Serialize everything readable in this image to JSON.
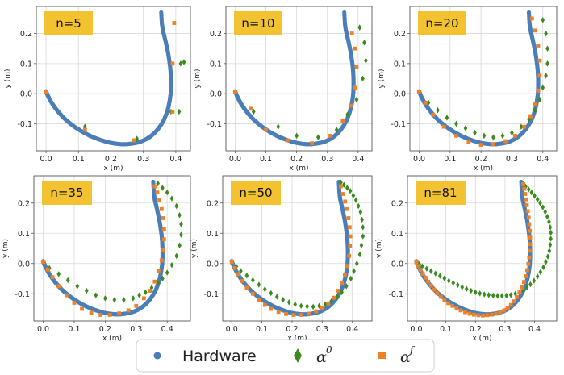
{
  "chart_data": [
    {
      "type": "scatter",
      "badge": "n=5",
      "xlabel": "x (m)",
      "ylabel": "y (m)",
      "xlim": [
        -0.03,
        0.445
      ],
      "ylim": [
        -0.19,
        0.29
      ],
      "xticks": [
        "0.0",
        "0.1",
        "0.2",
        "0.3",
        "0.4"
      ],
      "xtick_values": [
        0.0,
        0.1,
        0.2,
        0.3,
        0.4
      ],
      "yticks": [
        "-0.1",
        "0.0",
        "0.1",
        "0.2"
      ],
      "ytick_values": [
        -0.1,
        0.0,
        0.1,
        0.2
      ],
      "grid": true,
      "series": [
        {
          "name": "alpha0",
          "x": [
            0.0,
            0.12,
            0.28,
            0.385,
            0.41,
            0.415,
            0.425
          ],
          "y": [
            0.005,
            -0.11,
            -0.15,
            -0.06,
            -0.06,
            0.1,
            0.105
          ]
        },
        {
          "name": "alphaf",
          "x": [
            0.0,
            0.12,
            0.27,
            0.39,
            0.39,
            0.395
          ],
          "y": [
            0.005,
            -0.12,
            -0.155,
            -0.06,
            0.1,
            0.235
          ]
        }
      ]
    },
    {
      "type": "scatter",
      "badge": "n=10",
      "xlabel": "x (m)",
      "ylabel": "y (m)",
      "xlim": [
        -0.03,
        0.445
      ],
      "ylim": [
        -0.19,
        0.29
      ],
      "xticks": [
        "0.0",
        "0.1",
        "0.2",
        "0.3",
        "0.4"
      ],
      "xtick_values": [
        0.0,
        0.1,
        0.2,
        0.3,
        0.4
      ],
      "yticks": [
        "-0.1",
        "0.0",
        "0.1",
        "0.2"
      ],
      "ytick_values": [
        -0.1,
        0.0,
        0.1,
        0.2
      ],
      "grid": true,
      "series": [
        {
          "name": "alpha0",
          "x": [
            0.0,
            0.06,
            0.14,
            0.2,
            0.27,
            0.33,
            0.365,
            0.395,
            0.415,
            0.425,
            0.42,
            0.405
          ],
          "y": [
            0.005,
            -0.06,
            -0.11,
            -0.14,
            -0.145,
            -0.12,
            -0.07,
            -0.02,
            0.05,
            0.11,
            0.17,
            0.22
          ]
        },
        {
          "name": "alphaf",
          "x": [
            0.0,
            0.05,
            0.1,
            0.17,
            0.25,
            0.31,
            0.35,
            0.375,
            0.39,
            0.395,
            0.39,
            0.38
          ],
          "y": [
            0.005,
            -0.05,
            -0.12,
            -0.155,
            -0.165,
            -0.14,
            -0.09,
            -0.04,
            0.02,
            0.09,
            0.15,
            0.2
          ]
        }
      ]
    },
    {
      "type": "scatter",
      "badge": "n=20",
      "xlabel": "x (m)",
      "ylabel": "y (m)",
      "xlim": [
        -0.03,
        0.445
      ],
      "ylim": [
        -0.19,
        0.29
      ],
      "xticks": [
        "0.0",
        "0.1",
        "0.2",
        "0.3",
        "0.4"
      ],
      "xtick_values": [
        0.0,
        0.1,
        0.2,
        0.3,
        0.4
      ],
      "yticks": [
        "-0.1",
        "0.0",
        "0.1",
        "0.2"
      ],
      "ytick_values": [
        -0.1,
        0.0,
        0.1,
        0.2
      ],
      "grid": true,
      "series": [
        {
          "name": "alpha0",
          "x": [
            0.0,
            0.03,
            0.06,
            0.09,
            0.12,
            0.15,
            0.18,
            0.21,
            0.24,
            0.27,
            0.3,
            0.33,
            0.355,
            0.375,
            0.39,
            0.4,
            0.41,
            0.415,
            0.415,
            0.41,
            0.4
          ],
          "y": [
            0.005,
            -0.03,
            -0.055,
            -0.08,
            -0.1,
            -0.115,
            -0.13,
            -0.14,
            -0.145,
            -0.14,
            -0.13,
            -0.11,
            -0.085,
            -0.055,
            -0.02,
            0.02,
            0.06,
            0.1,
            0.15,
            0.2,
            0.245
          ]
        },
        {
          "name": "alphaf",
          "x": [
            0.0,
            0.02,
            0.045,
            0.08,
            0.12,
            0.16,
            0.2,
            0.24,
            0.28,
            0.31,
            0.34,
            0.36,
            0.375,
            0.385,
            0.39,
            0.39,
            0.385,
            0.375,
            0.365
          ],
          "y": [
            0.005,
            -0.03,
            -0.07,
            -0.11,
            -0.14,
            -0.16,
            -0.17,
            -0.168,
            -0.158,
            -0.14,
            -0.11,
            -0.075,
            -0.035,
            0.01,
            0.06,
            0.11,
            0.16,
            0.21,
            0.25
          ]
        }
      ]
    },
    {
      "type": "scatter",
      "badge": "n=35",
      "xlabel": "x (m)",
      "ylabel": "y (m)",
      "xlim": [
        -0.03,
        0.475
      ],
      "ylim": [
        -0.19,
        0.29
      ],
      "xticks": [
        "0.0",
        "0.1",
        "0.2",
        "0.3",
        "0.4"
      ],
      "xtick_values": [
        0.0,
        0.1,
        0.2,
        0.3,
        0.4
      ],
      "yticks": [
        "-0.1",
        "0.0",
        "0.1",
        "0.2"
      ],
      "ytick_values": [
        -0.1,
        0.0,
        0.1,
        0.2
      ],
      "grid": true,
      "series": [
        {
          "name": "alpha0",
          "x": [
            0.0,
            0.02,
            0.05,
            0.08,
            0.11,
            0.14,
            0.17,
            0.2,
            0.23,
            0.26,
            0.29,
            0.31,
            0.33,
            0.35,
            0.37,
            0.385,
            0.4,
            0.415,
            0.43,
            0.44,
            0.445,
            0.445,
            0.44,
            0.43,
            0.415,
            0.4,
            0.385,
            0.37
          ],
          "y": [
            0.005,
            -0.015,
            -0.035,
            -0.055,
            -0.075,
            -0.09,
            -0.105,
            -0.115,
            -0.12,
            -0.12,
            -0.115,
            -0.105,
            -0.095,
            -0.08,
            -0.065,
            -0.05,
            -0.03,
            -0.005,
            0.025,
            0.06,
            0.095,
            0.13,
            0.16,
            0.19,
            0.215,
            0.235,
            0.25,
            0.265
          ]
        },
        {
          "name": "alphaf",
          "x": [
            0.0,
            0.015,
            0.03,
            0.05,
            0.075,
            0.1,
            0.125,
            0.155,
            0.185,
            0.215,
            0.245,
            0.275,
            0.3,
            0.325,
            0.345,
            0.36,
            0.372,
            0.382,
            0.388,
            0.39,
            0.39,
            0.387,
            0.382,
            0.375,
            0.368,
            0.36
          ],
          "y": [
            0.005,
            -0.02,
            -0.045,
            -0.075,
            -0.105,
            -0.13,
            -0.15,
            -0.163,
            -0.17,
            -0.17,
            -0.165,
            -0.155,
            -0.14,
            -0.115,
            -0.09,
            -0.06,
            -0.025,
            0.01,
            0.045,
            0.08,
            0.115,
            0.15,
            0.18,
            0.21,
            0.235,
            0.255
          ]
        }
      ]
    },
    {
      "type": "scatter",
      "badge": "n=50",
      "xlabel": "x (m)",
      "ylabel": "y (m)",
      "xlim": [
        -0.03,
        0.465
      ],
      "ylim": [
        -0.19,
        0.29
      ],
      "xticks": [
        "0.0",
        "0.1",
        "0.2",
        "0.3",
        "0.4"
      ],
      "xtick_values": [
        0.0,
        0.1,
        0.2,
        0.3,
        0.4
      ],
      "yticks": [
        "-0.1",
        "0.0",
        "0.1",
        "0.2"
      ],
      "ytick_values": [
        -0.1,
        0.0,
        0.1,
        0.2
      ],
      "grid": true,
      "series": [
        {
          "name": "alpha0",
          "x": [
            0.0,
            0.015,
            0.03,
            0.05,
            0.07,
            0.09,
            0.11,
            0.13,
            0.15,
            0.17,
            0.19,
            0.21,
            0.23,
            0.25,
            0.27,
            0.29,
            0.31,
            0.33,
            0.35,
            0.365,
            0.38,
            0.395,
            0.405,
            0.415,
            0.425,
            0.43,
            0.435,
            0.435,
            0.432,
            0.427,
            0.42,
            0.412,
            0.403,
            0.393,
            0.383,
            0.372,
            0.362
          ],
          "y": [
            0.005,
            -0.01,
            -0.025,
            -0.04,
            -0.055,
            -0.07,
            -0.085,
            -0.098,
            -0.11,
            -0.12,
            -0.128,
            -0.135,
            -0.14,
            -0.142,
            -0.143,
            -0.14,
            -0.135,
            -0.125,
            -0.11,
            -0.095,
            -0.075,
            -0.05,
            -0.025,
            0.0,
            0.03,
            0.06,
            0.09,
            0.12,
            0.145,
            0.17,
            0.19,
            0.21,
            0.225,
            0.24,
            0.25,
            0.26,
            0.268
          ]
        },
        {
          "name": "alphaf",
          "x": [
            0.0,
            0.01,
            0.02,
            0.035,
            0.05,
            0.07,
            0.09,
            0.11,
            0.13,
            0.155,
            0.18,
            0.205,
            0.23,
            0.255,
            0.28,
            0.3,
            0.32,
            0.338,
            0.352,
            0.365,
            0.375,
            0.383,
            0.389,
            0.392,
            0.393,
            0.391,
            0.387,
            0.382,
            0.376,
            0.369,
            0.362
          ],
          "y": [
            0.005,
            -0.015,
            -0.035,
            -0.058,
            -0.08,
            -0.1,
            -0.12,
            -0.137,
            -0.15,
            -0.16,
            -0.167,
            -0.17,
            -0.17,
            -0.166,
            -0.158,
            -0.147,
            -0.132,
            -0.113,
            -0.09,
            -0.065,
            -0.037,
            -0.008,
            0.025,
            0.058,
            0.09,
            0.12,
            0.15,
            0.18,
            0.205,
            0.23,
            0.255
          ]
        }
      ]
    },
    {
      "type": "scatter",
      "badge": "n=81",
      "xlabel": "x (m)",
      "ylabel": "y (m)",
      "xlim": [
        -0.03,
        0.475
      ],
      "ylim": [
        -0.19,
        0.29
      ],
      "xticks": [
        "0.0",
        "0.1",
        "0.2",
        "0.3",
        "0.4"
      ],
      "xtick_values": [
        0.0,
        0.1,
        0.2,
        0.3,
        0.4
      ],
      "yticks": [
        "-0.1",
        "0.0",
        "0.1",
        "0.2"
      ],
      "ytick_values": [
        -0.1,
        0.0,
        0.1,
        0.2
      ],
      "grid": true,
      "series": [
        {
          "name": "alpha0",
          "x": [
            0.0,
            0.01,
            0.02,
            0.035,
            0.05,
            0.065,
            0.08,
            0.095,
            0.11,
            0.125,
            0.14,
            0.155,
            0.17,
            0.185,
            0.2,
            0.215,
            0.23,
            0.245,
            0.26,
            0.275,
            0.29,
            0.305,
            0.32,
            0.335,
            0.35,
            0.362,
            0.374,
            0.386,
            0.398,
            0.41,
            0.42,
            0.43,
            0.438,
            0.445,
            0.45,
            0.453,
            0.455,
            0.455,
            0.453,
            0.449,
            0.443,
            0.436,
            0.428,
            0.419,
            0.41,
            0.4,
            0.39,
            0.38,
            0.37,
            0.362
          ],
          "y": [
            0.005,
            -0.002,
            -0.009,
            -0.017,
            -0.025,
            -0.033,
            -0.041,
            -0.049,
            -0.057,
            -0.064,
            -0.071,
            -0.078,
            -0.084,
            -0.09,
            -0.095,
            -0.099,
            -0.102,
            -0.104,
            -0.106,
            -0.107,
            -0.107,
            -0.106,
            -0.104,
            -0.1,
            -0.095,
            -0.088,
            -0.079,
            -0.069,
            -0.057,
            -0.043,
            -0.028,
            -0.012,
            0.005,
            0.023,
            0.042,
            0.062,
            0.082,
            0.102,
            0.12,
            0.138,
            0.155,
            0.171,
            0.186,
            0.2,
            0.212,
            0.224,
            0.235,
            0.245,
            0.254,
            0.262
          ]
        },
        {
          "name": "alphaf",
          "x": [
            0.0,
            0.007,
            0.014,
            0.022,
            0.031,
            0.04,
            0.05,
            0.06,
            0.071,
            0.083,
            0.095,
            0.108,
            0.122,
            0.136,
            0.15,
            0.165,
            0.18,
            0.195,
            0.21,
            0.225,
            0.24,
            0.255,
            0.27,
            0.284,
            0.297,
            0.309,
            0.32,
            0.33,
            0.34,
            0.349,
            0.357,
            0.364,
            0.37,
            0.375,
            0.379,
            0.382,
            0.384,
            0.385,
            0.385,
            0.384,
            0.382,
            0.38,
            0.377,
            0.374,
            0.371,
            0.368,
            0.365,
            0.362
          ],
          "y": [
            0.005,
            -0.008,
            -0.021,
            -0.034,
            -0.047,
            -0.06,
            -0.073,
            -0.086,
            -0.098,
            -0.11,
            -0.121,
            -0.131,
            -0.14,
            -0.148,
            -0.155,
            -0.161,
            -0.166,
            -0.169,
            -0.171,
            -0.172,
            -0.171,
            -0.169,
            -0.166,
            -0.161,
            -0.155,
            -0.147,
            -0.137,
            -0.125,
            -0.111,
            -0.096,
            -0.079,
            -0.061,
            -0.042,
            -0.022,
            -0.001,
            0.02,
            0.042,
            0.064,
            0.086,
            0.108,
            0.13,
            0.152,
            0.173,
            0.193,
            0.212,
            0.23,
            0.247,
            0.262
          ]
        }
      ]
    }
  ],
  "hardware_curve": {
    "name": "Hardware",
    "x": [
      0.0,
      0.004,
      0.009,
      0.015,
      0.022,
      0.03,
      0.039,
      0.049,
      0.06,
      0.072,
      0.085,
      0.099,
      0.114,
      0.13,
      0.146,
      0.163,
      0.18,
      0.197,
      0.214,
      0.231,
      0.248,
      0.264,
      0.28,
      0.295,
      0.309,
      0.322,
      0.334,
      0.345,
      0.355,
      0.364,
      0.371,
      0.377,
      0.381,
      0.384,
      0.385,
      0.385,
      0.384,
      0.382,
      0.379,
      0.376,
      0.372,
      0.368,
      0.364,
      0.36,
      0.357,
      0.355
    ],
    "y": [
      0.008,
      -0.003,
      -0.014,
      -0.026,
      -0.038,
      -0.05,
      -0.062,
      -0.074,
      -0.086,
      -0.097,
      -0.108,
      -0.118,
      -0.128,
      -0.137,
      -0.145,
      -0.152,
      -0.158,
      -0.163,
      -0.166,
      -0.168,
      -0.168,
      -0.166,
      -0.163,
      -0.158,
      -0.151,
      -0.142,
      -0.131,
      -0.118,
      -0.103,
      -0.086,
      -0.067,
      -0.046,
      -0.024,
      -0.001,
      0.023,
      0.047,
      0.071,
      0.094,
      0.116,
      0.137,
      0.157,
      0.176,
      0.194,
      0.211,
      0.233,
      0.27
    ]
  },
  "legend": {
    "hardware_label": "Hardware",
    "alpha0_symbol": "α",
    "alpha0_sup": "0",
    "alphaf_symbol": "α",
    "alphaf_sup": "f"
  },
  "colors": {
    "hardware": "#4a7eb8",
    "alpha0": "#3a8a1e",
    "alphaf": "#ee8126",
    "badge": "#f2c230",
    "grid": "#d9d9d9",
    "axes": "#555555"
  }
}
